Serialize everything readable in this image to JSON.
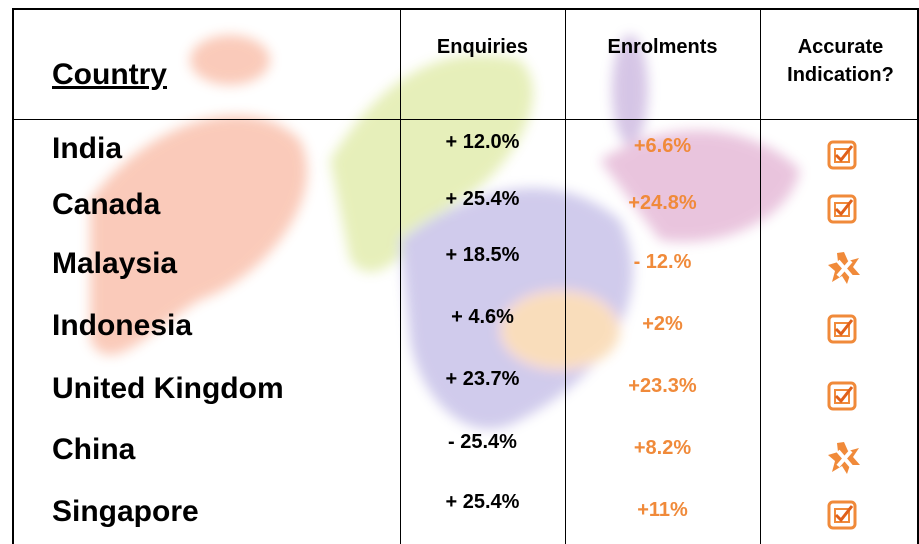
{
  "table": {
    "header": [
      "Country",
      "Enquiries",
      "Enrolments",
      "Accurate Indication?"
    ],
    "rows": [
      [
        "India",
        "+ 12.0%",
        "+6.6%"
      ],
      [
        "Canada",
        "+ 25.4%",
        "+24.8%"
      ],
      [
        "Malaysia",
        "+ 18.5%",
        "- 12.%"
      ],
      [
        "Indonesia",
        "+ 4.6%",
        "+2%"
      ],
      [
        "United Kingdom",
        "+ 23.7%",
        "+23.3%"
      ],
      [
        "China",
        "- 25.4%",
        "+8.2%"
      ],
      [
        "Singapore",
        "+ 25.4%",
        "+11%"
      ]
    ]
  }
}
